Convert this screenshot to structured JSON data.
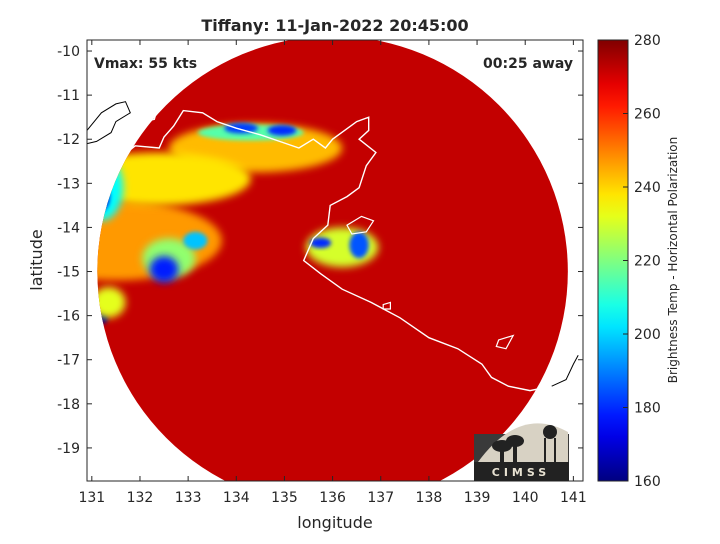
{
  "chart_data": {
    "type": "heatmap",
    "title": "Tiffany: 11-Jan-2022 20:45:00",
    "xlabel": "longitude",
    "ylabel": "latitude",
    "xlim": [
      130.9,
      141.2
    ],
    "ylim": [
      -19.75,
      -9.75
    ],
    "x_ticks": [
      131,
      132,
      133,
      134,
      135,
      136,
      137,
      138,
      139,
      140,
      141
    ],
    "y_ticks": [
      -10,
      -11,
      -12,
      -13,
      -14,
      -15,
      -16,
      -17,
      -18,
      -19
    ],
    "annotations": {
      "vmax": "Vmax: 55 kts",
      "time_offset": "00:25 away"
    },
    "swath": {
      "shape": "circle",
      "center_lon": 136.0,
      "center_lat": -15.0,
      "radius_deg": 5.1,
      "background_value": 272
    },
    "field_blobs": [
      {
        "lon": 131.5,
        "lat": -14.3,
        "rx": 2.2,
        "ry": 0.9,
        "value": 247
      },
      {
        "lon": 134.4,
        "lat": -12.2,
        "rx": 1.8,
        "ry": 0.55,
        "value": 243
      },
      {
        "lon": 132.4,
        "lat": -12.9,
        "rx": 1.9,
        "ry": 0.6,
        "value": 238
      },
      {
        "lon": 131.2,
        "lat": -13.1,
        "rx": 0.45,
        "ry": 0.75,
        "value": 205
      },
      {
        "lon": 131.15,
        "lat": -13.3,
        "rx": 0.22,
        "ry": 0.35,
        "value": 172
      },
      {
        "lon": 134.3,
        "lat": -11.85,
        "rx": 1.1,
        "ry": 0.18,
        "value": 215
      },
      {
        "lon": 134.1,
        "lat": -11.75,
        "rx": 0.35,
        "ry": 0.12,
        "value": 182
      },
      {
        "lon": 134.95,
        "lat": -11.8,
        "rx": 0.3,
        "ry": 0.12,
        "value": 180
      },
      {
        "lon": 132.6,
        "lat": -14.7,
        "rx": 0.55,
        "ry": 0.45,
        "value": 222
      },
      {
        "lon": 132.5,
        "lat": -14.95,
        "rx": 0.3,
        "ry": 0.3,
        "value": 178
      },
      {
        "lon": 133.15,
        "lat": -14.3,
        "rx": 0.25,
        "ry": 0.2,
        "value": 198
      },
      {
        "lon": 136.2,
        "lat": -14.45,
        "rx": 0.75,
        "ry": 0.45,
        "value": 230
      },
      {
        "lon": 136.55,
        "lat": -14.4,
        "rx": 0.2,
        "ry": 0.3,
        "value": 185
      },
      {
        "lon": 135.75,
        "lat": -14.35,
        "rx": 0.22,
        "ry": 0.12,
        "value": 180
      },
      {
        "lon": 131.2,
        "lat": -16.05,
        "rx": 0.14,
        "ry": 0.14,
        "value": 162
      },
      {
        "lon": 131.35,
        "lat": -15.7,
        "rx": 0.35,
        "ry": 0.35,
        "value": 232
      }
    ],
    "colorbar": {
      "label": "Brightness Temp - Horizontal Polarization",
      "min": 160,
      "max": 280,
      "ticks": [
        160,
        180,
        200,
        220,
        240,
        260,
        280
      ],
      "colormap": "jet"
    },
    "grid": false,
    "legend": "none",
    "coastline_color": "#ffffff",
    "coastline_outside_color": "#000000"
  },
  "logo": {
    "text": "CIMSS"
  }
}
